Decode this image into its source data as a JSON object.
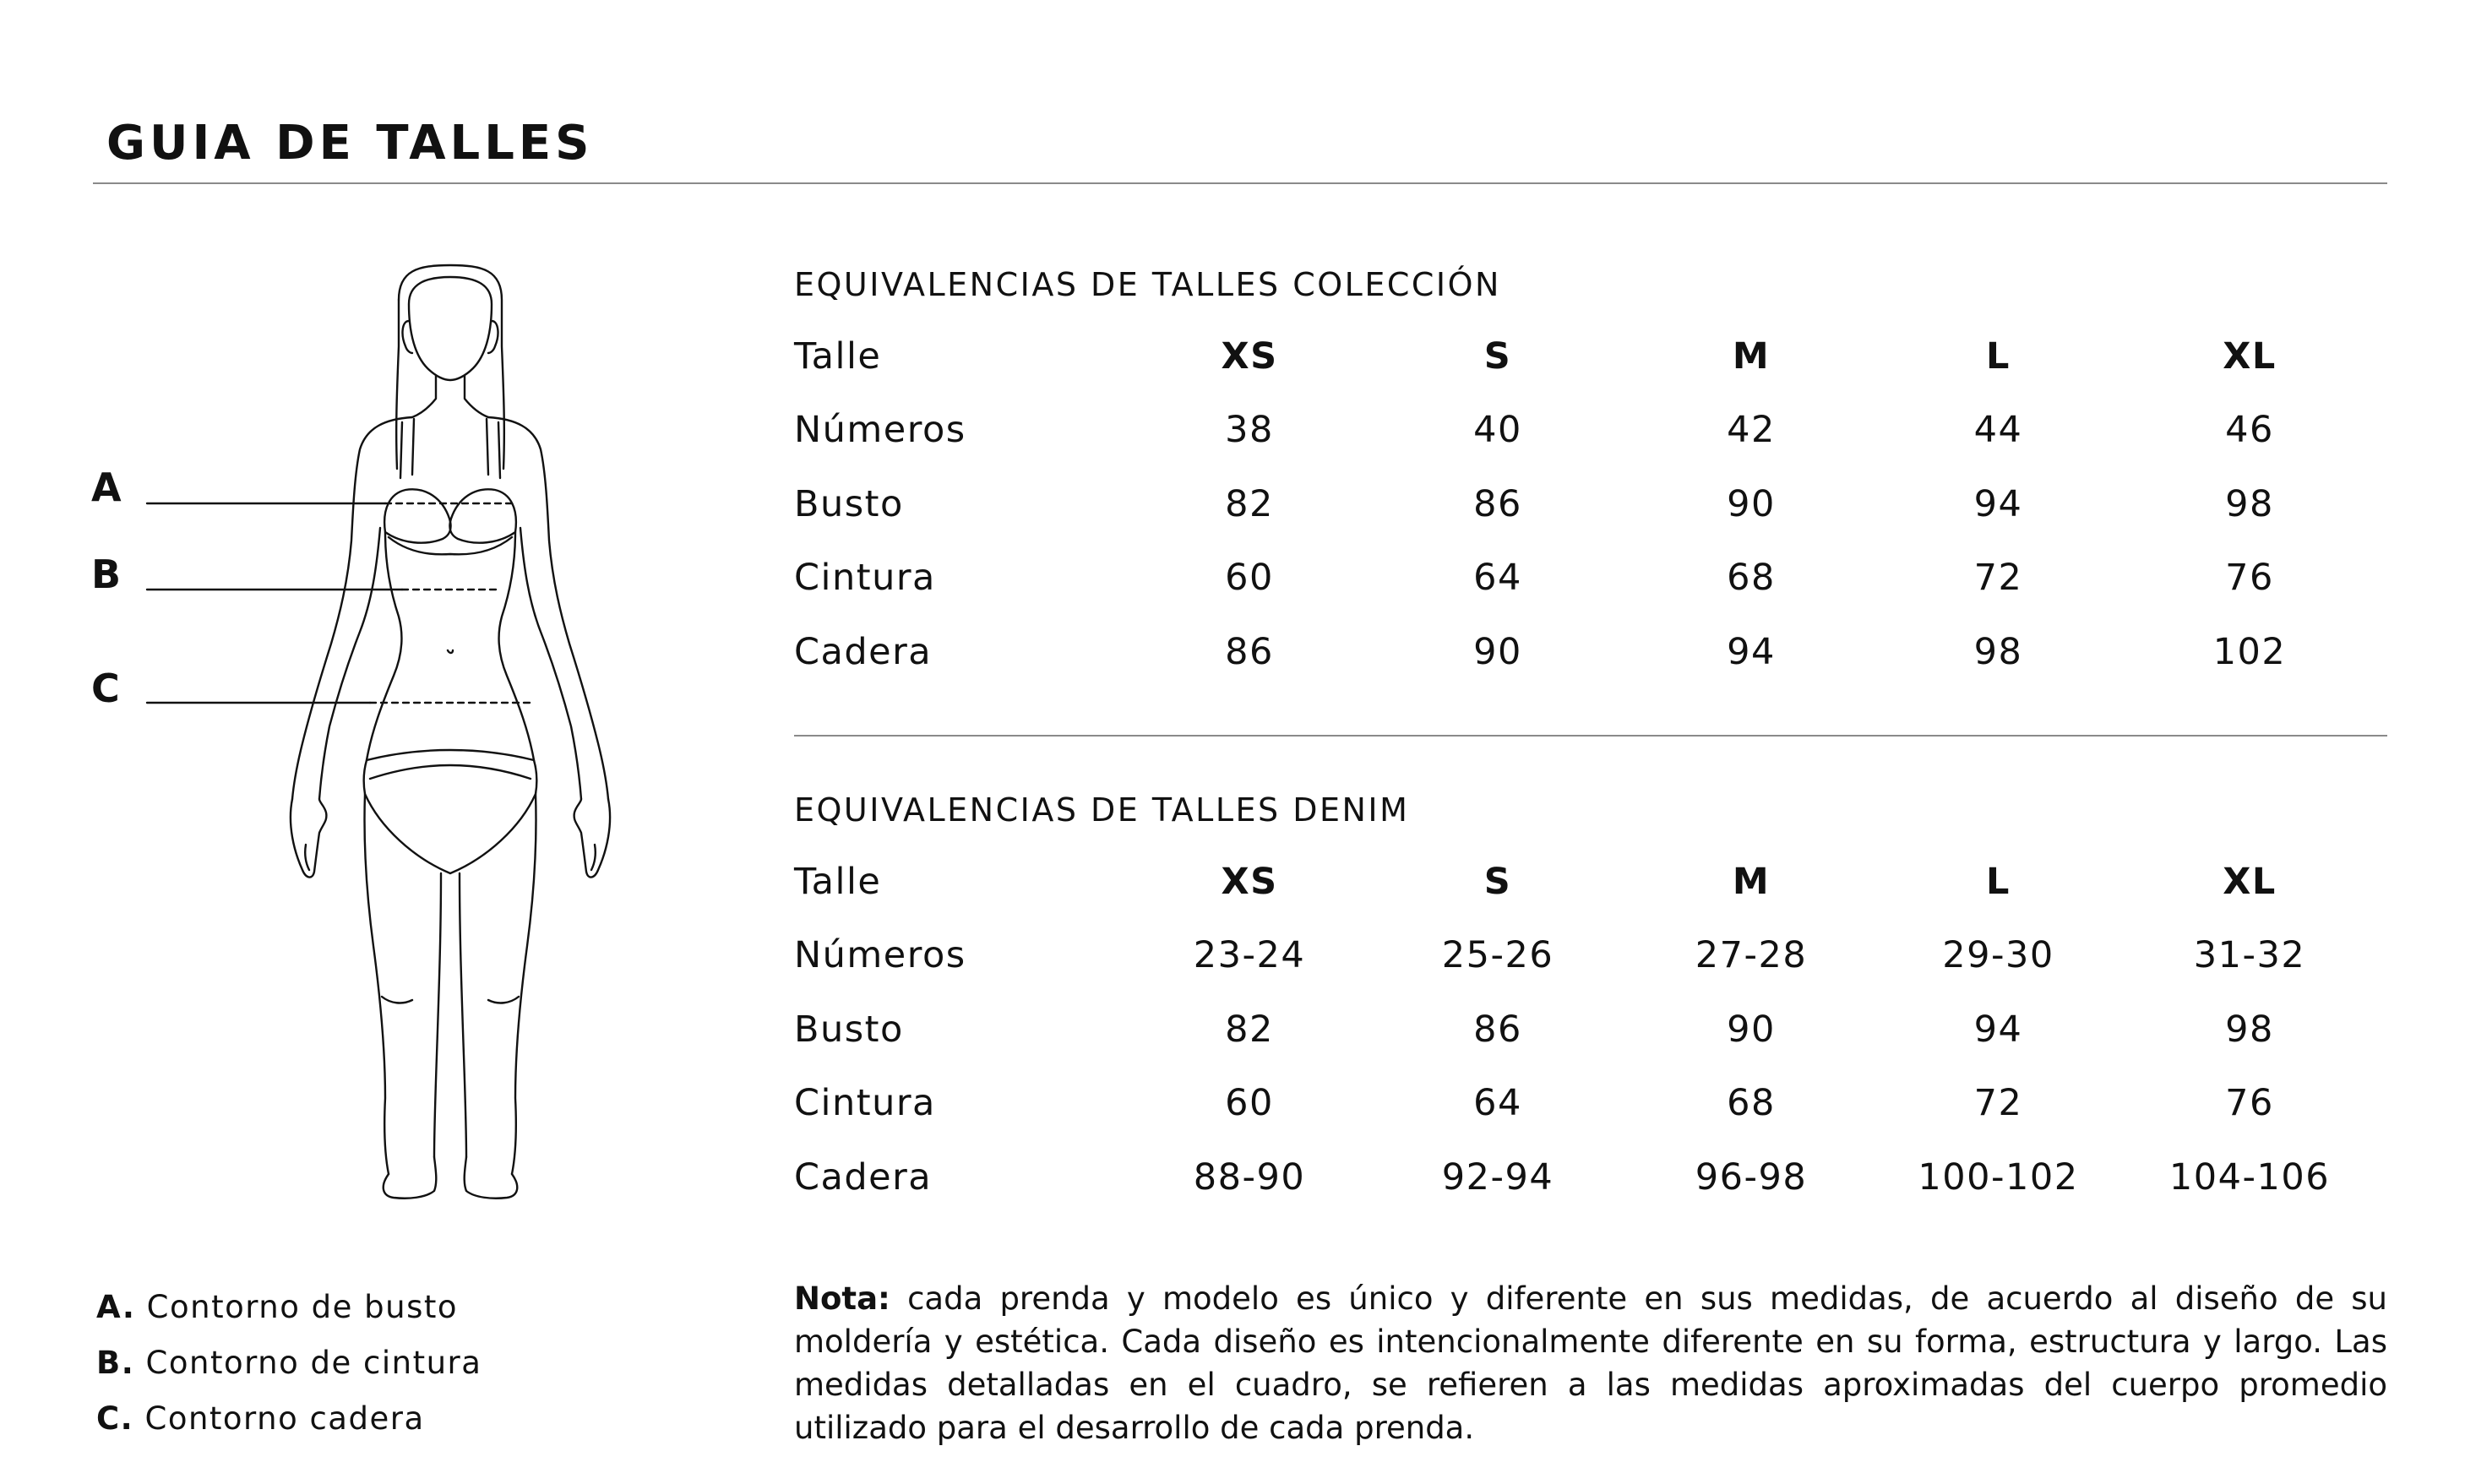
{
  "header": {
    "title": "GUIA DE TALLES"
  },
  "figure": {
    "markers": [
      {
        "letter": "A"
      },
      {
        "letter": "B"
      },
      {
        "letter": "C"
      }
    ]
  },
  "collection": {
    "title": "EQUIVALENCIAS DE TALLES COLECCIÓN",
    "rows": [
      {
        "label": "Talle",
        "values": [
          "XS",
          "S",
          "M",
          "L",
          "XL"
        ]
      },
      {
        "label": "Números",
        "values": [
          "38",
          "40",
          "42",
          "44",
          "46"
        ]
      },
      {
        "label": "Busto",
        "values": [
          "82",
          "86",
          "90",
          "94",
          "98"
        ]
      },
      {
        "label": "Cintura",
        "values": [
          "60",
          "64",
          "68",
          "72",
          "76"
        ]
      },
      {
        "label": "Cadera",
        "values": [
          "86",
          "90",
          "94",
          "98",
          "102"
        ]
      }
    ]
  },
  "denim": {
    "title": "EQUIVALENCIAS DE TALLES DENIM",
    "rows": [
      {
        "label": "Talle",
        "values": [
          "XS",
          "S",
          "M",
          "L",
          "XL"
        ]
      },
      {
        "label": "Números",
        "values": [
          "23-24",
          "25-26",
          "27-28",
          "29-30",
          "31-32"
        ]
      },
      {
        "label": "Busto",
        "values": [
          "82",
          "86",
          "90",
          "94",
          "98"
        ]
      },
      {
        "label": "Cintura",
        "values": [
          "60",
          "64",
          "68",
          "72",
          "76"
        ]
      },
      {
        "label": "Cadera",
        "values": [
          "88-90",
          "92-94",
          "96-98",
          "100-102",
          "104-106"
        ]
      }
    ]
  },
  "legend": [
    {
      "key": "A.",
      "text": "Contorno de busto"
    },
    {
      "key": "B.",
      "text": "Contorno de cintura"
    },
    {
      "key": "C.",
      "text": "Contorno cadera"
    }
  ],
  "note": {
    "label": "Nota:",
    "text": "cada prenda y modelo es único y diferente en sus medidas, de acuerdo al diseño de su moldería y estética. Cada diseño es intencionalmente diferente en su forma, estructura y largo. Las medidas detalladas en el cuadro, se refieren a las medidas aproximadas del cuerpo promedio utilizado para el desarrollo de cada prenda."
  }
}
